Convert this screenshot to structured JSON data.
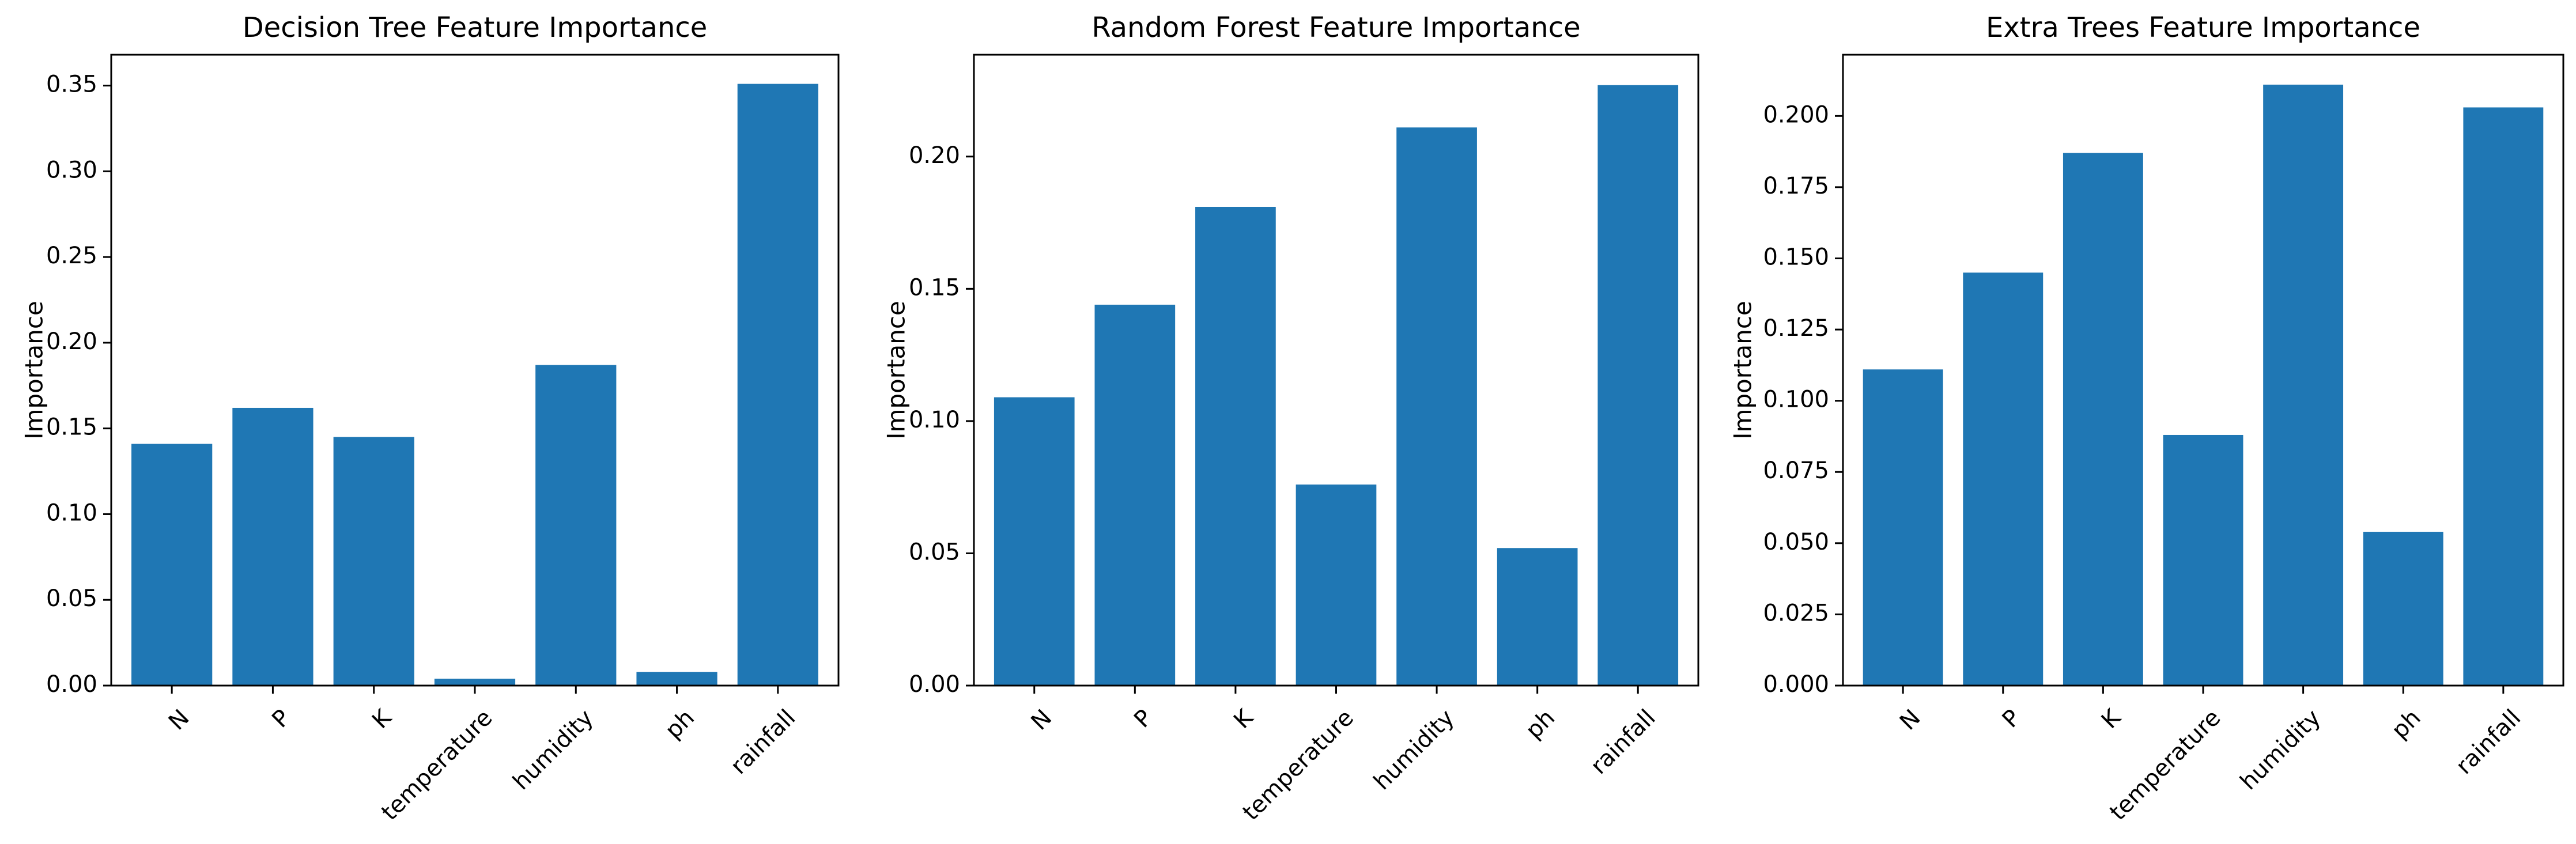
{
  "chart_data": [
    {
      "type": "bar",
      "title": "Decision Tree Feature Importance",
      "xlabel": "",
      "ylabel": "Importance",
      "categories": [
        "N",
        "P",
        "K",
        "temperature",
        "humidity",
        "ph",
        "rainfall"
      ],
      "values": [
        0.141,
        0.162,
        0.145,
        0.004,
        0.187,
        0.008,
        0.351
      ],
      "ylim": [
        0,
        0.368
      ],
      "yticks": [
        0.0,
        0.05,
        0.1,
        0.15,
        0.2,
        0.25,
        0.3,
        0.35
      ],
      "ytick_labels": [
        "0.00",
        "0.05",
        "0.10",
        "0.15",
        "0.20",
        "0.25",
        "0.30",
        "0.35"
      ],
      "bar_color": "#1f77b4",
      "grid": false
    },
    {
      "type": "bar",
      "title": "Random Forest Feature Importance",
      "xlabel": "",
      "ylabel": "Importance",
      "categories": [
        "N",
        "P",
        "K",
        "temperature",
        "humidity",
        "ph",
        "rainfall"
      ],
      "values": [
        0.109,
        0.144,
        0.181,
        0.076,
        0.211,
        0.052,
        0.227
      ],
      "ylim": [
        0,
        0.2385
      ],
      "yticks": [
        0.0,
        0.05,
        0.1,
        0.15,
        0.2
      ],
      "ytick_labels": [
        "0.00",
        "0.05",
        "0.10",
        "0.15",
        "0.20"
      ],
      "bar_color": "#1f77b4",
      "grid": false
    },
    {
      "type": "bar",
      "title": "Extra Trees Feature Importance",
      "xlabel": "",
      "ylabel": "Importance",
      "categories": [
        "N",
        "P",
        "K",
        "temperature",
        "humidity",
        "ph",
        "rainfall"
      ],
      "values": [
        0.111,
        0.145,
        0.187,
        0.088,
        0.211,
        0.054,
        0.203
      ],
      "ylim": [
        0,
        0.2215
      ],
      "yticks": [
        0.0,
        0.025,
        0.05,
        0.075,
        0.1,
        0.125,
        0.15,
        0.175,
        0.2
      ],
      "ytick_labels": [
        "0.000",
        "0.025",
        "0.050",
        "0.075",
        "0.100",
        "0.125",
        "0.150",
        "0.175",
        "0.200"
      ],
      "bar_color": "#1f77b4",
      "grid": false
    }
  ]
}
